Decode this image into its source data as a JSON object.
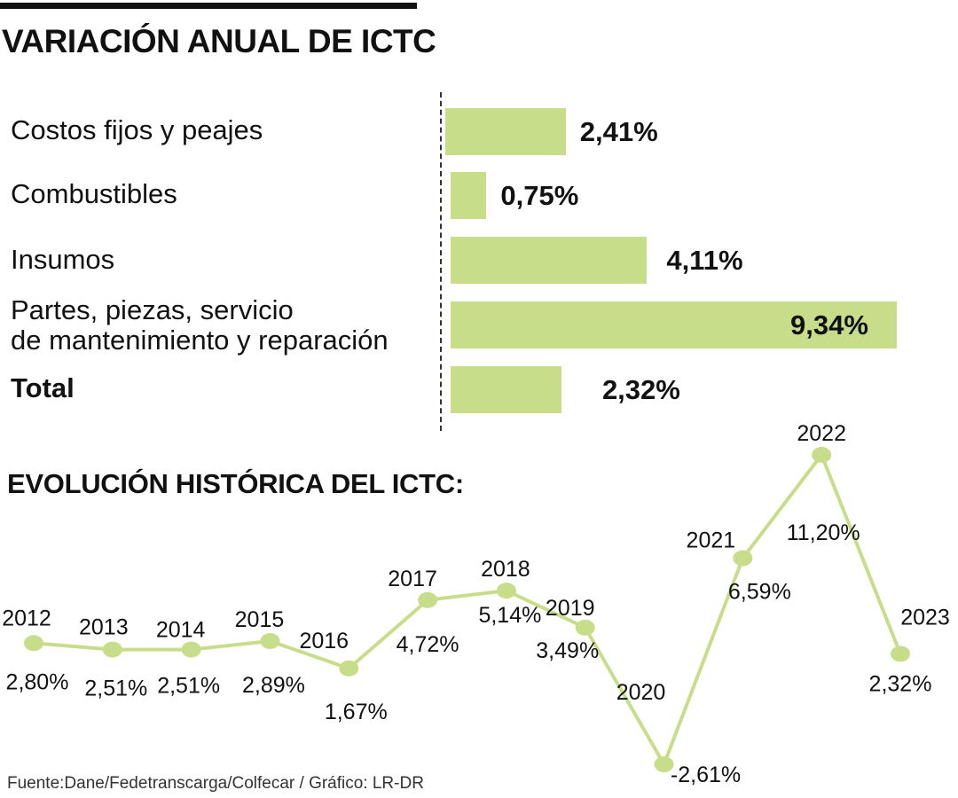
{
  "colors": {
    "bar": "#c8dd8a",
    "line": "#c8dd8a",
    "text": "#111111"
  },
  "header": {
    "title": "VARIACIÓN ANUAL DE ICTC",
    "subtitle": "EVOLUCIÓN HISTÓRICA DEL ICTC:"
  },
  "source": "Fuente:Dane/Fedetranscarga/Colfecar / Gráfico: LR-DR",
  "chart_data": [
    {
      "type": "bar",
      "orientation": "horizontal",
      "title": "VARIACIÓN ANUAL DE ICTC",
      "categories": [
        "Costos fijos y peajes",
        "Combustibles",
        "Insumos",
        "Partes, piezas, servicio de mantenimiento y reparación",
        "Total"
      ],
      "category_lines": [
        [
          "Costos fijos y peajes"
        ],
        [
          "Combustibles"
        ],
        [
          "Insumos"
        ],
        [
          "Partes, piezas, servicio",
          "de mantenimiento y reparación"
        ],
        [
          "Total"
        ]
      ],
      "values": [
        2.41,
        0.75,
        4.11,
        9.34,
        2.32
      ],
      "value_labels": [
        "2,41%",
        "0,75%",
        "4,11%",
        "9,34%",
        "2,32%"
      ],
      "xlim": [
        0,
        9.34
      ]
    },
    {
      "type": "line",
      "title": "EVOLUCIÓN HISTÓRICA DEL ICTC:",
      "x": [
        "2012",
        "2013",
        "2014",
        "2015",
        "2016",
        "2017",
        "2018",
        "2019",
        "2020",
        "2021",
        "2022",
        "2023"
      ],
      "values": [
        2.8,
        2.51,
        2.51,
        2.89,
        1.67,
        4.72,
        5.14,
        3.49,
        -2.61,
        6.59,
        11.2,
        2.32
      ],
      "value_labels": [
        "2,80%",
        "2,51%",
        "2,51%",
        "2,89%",
        "1,67%",
        "4,72%",
        "5,14%",
        "3,49%",
        "-2,61%",
        "6,59%",
        "11,20%",
        "2,32%"
      ],
      "ylim": [
        -2.61,
        11.2
      ]
    }
  ]
}
